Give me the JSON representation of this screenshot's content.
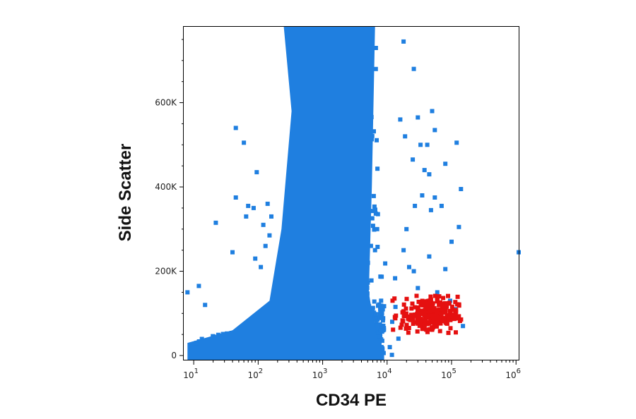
{
  "chart_data": {
    "type": "scatter",
    "xlabel": "CD34 PE",
    "ylabel": "Side Scatter",
    "x_scale": "log",
    "xlim": [
      7,
      1100000
    ],
    "ylim": [
      -10000,
      780000
    ],
    "y_ticks": [
      {
        "value": 0,
        "label": "0"
      },
      {
        "value": 200000,
        "label": "200K"
      },
      {
        "value": 400000,
        "label": "400K"
      },
      {
        "value": 600000,
        "label": "600K"
      }
    ],
    "x_ticks": [
      {
        "value": 10,
        "base": "10",
        "exp": "1"
      },
      {
        "value": 100,
        "base": "10",
        "exp": "2"
      },
      {
        "value": 1000,
        "base": "10",
        "exp": "3"
      },
      {
        "value": 10000,
        "base": "10",
        "exp": "4"
      },
      {
        "value": 100000,
        "base": "10",
        "exp": "5"
      },
      {
        "value": 1000000,
        "base": "10",
        "exp": "6"
      }
    ],
    "grid": false,
    "legend": "none",
    "series": [
      {
        "color": "#1f7fe0",
        "main_population": {
          "x_range": [
            200,
            7000
          ],
          "y_range": [
            0,
            780000
          ],
          "peak_x": 2000,
          "dense_low_region": {
            "x_range": [
              8,
              9000
            ],
            "y_range": [
              0,
              100000
            ]
          }
        },
        "points": [
          [
            45,
            540000
          ],
          [
            60,
            505000
          ],
          [
            95,
            435000
          ],
          [
            150,
            285000
          ],
          [
            160,
            330000
          ],
          [
            22,
            315000
          ],
          [
            12,
            165000
          ],
          [
            15,
            120000
          ],
          [
            8,
            150000
          ],
          [
            11,
            30000
          ],
          [
            45,
            375000
          ],
          [
            70,
            355000
          ],
          [
            65,
            330000
          ],
          [
            85,
            350000
          ],
          [
            120,
            310000
          ],
          [
            40,
            245000
          ],
          [
            140,
            360000
          ],
          [
            110,
            210000
          ],
          [
            90,
            230000
          ],
          [
            130,
            260000
          ],
          [
            18000,
            745000
          ],
          [
            16000,
            560000
          ],
          [
            19000,
            520000
          ],
          [
            26000,
            680000
          ],
          [
            30000,
            565000
          ],
          [
            55000,
            535000
          ],
          [
            42000,
            500000
          ],
          [
            33000,
            500000
          ],
          [
            25000,
            465000
          ],
          [
            38000,
            440000
          ],
          [
            45000,
            430000
          ],
          [
            48000,
            345000
          ],
          [
            55000,
            375000
          ],
          [
            80000,
            455000
          ],
          [
            120000,
            505000
          ],
          [
            140000,
            395000
          ],
          [
            130000,
            305000
          ],
          [
            100000,
            270000
          ],
          [
            70000,
            355000
          ],
          [
            35000,
            380000
          ],
          [
            45000,
            235000
          ],
          [
            22000,
            210000
          ],
          [
            18000,
            250000
          ],
          [
            20000,
            300000
          ],
          [
            80000,
            205000
          ],
          [
            95000,
            130000
          ],
          [
            115000,
            110000
          ],
          [
            150000,
            70000
          ],
          [
            1100000,
            245000
          ],
          [
            8000,
            60000
          ],
          [
            6500,
            250000
          ],
          [
            7000,
            300000
          ],
          [
            12000,
            80000
          ],
          [
            15000,
            40000
          ],
          [
            11000,
            20000
          ],
          [
            60000,
            150000
          ],
          [
            30000,
            160000
          ],
          [
            26000,
            200000
          ],
          [
            50000,
            580000
          ],
          [
            27000,
            355000
          ]
        ]
      },
      {
        "color": "#e51010",
        "gate_population": {
          "x_range": [
            12000,
            150000
          ],
          "y_range": [
            50000,
            160000
          ],
          "center": [
            45000,
            95000
          ]
        }
      }
    ]
  }
}
